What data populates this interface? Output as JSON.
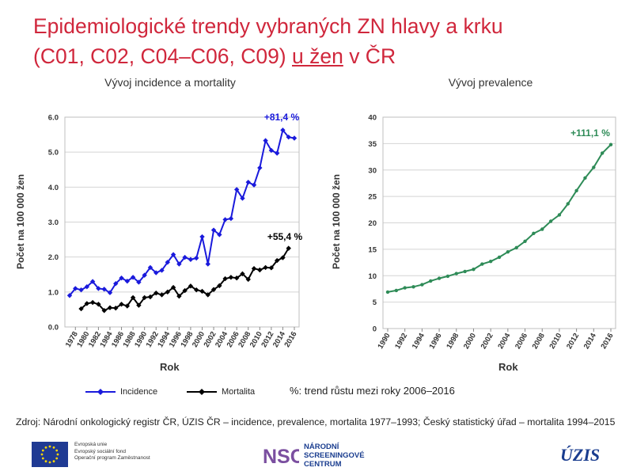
{
  "title": {
    "line1": "Epidemiologické trendy vybraných ZN hlavy a krku",
    "line2_pre": "(C01, C02, C04–C06, C09) ",
    "line2_under": "u žen",
    "line2_post": " v ČR"
  },
  "legend": {
    "incidence": "Incidence",
    "mortality": "Mortalita",
    "note": "%: trend růstu mezi roky 2006–2016"
  },
  "source": "Zdroj: Národní onkologický registr ČR, ÚZIS ČR – incidence, prevalence, mortalita 1977–1993; Český statistický úřad – mortalita 1994–2015",
  "footer": {
    "eu_lines": [
      "Evropská unie",
      "Evropský sociální fond",
      "Operační program Zaměstnanost"
    ],
    "nsc_logo": "NSC",
    "nsc_lines": [
      "NÁRODNÍ",
      "SCREENINGOVÉ",
      "CENTRUM"
    ],
    "uzis_logo": "ÚZIS"
  },
  "colors": {
    "incidence": "#1a1adc",
    "mortality": "#000000",
    "prevalence": "#2e8b57",
    "title": "#d0273c"
  },
  "chart_data": [
    {
      "type": "line",
      "title": "Vývoj incidence a mortality",
      "xlabel": "Rok",
      "ylabel": "Počet na 100 000 žen",
      "ylim": [
        0,
        6
      ],
      "yticks": [
        "0.0",
        "1.0",
        "2.0",
        "3.0",
        "4.0",
        "5.0",
        "6.0"
      ],
      "xticks": [
        "1978",
        "1980",
        "1982",
        "1984",
        "1986",
        "1988",
        "1990",
        "1992",
        "1994",
        "1996",
        "1998",
        "2000",
        "2002",
        "2004",
        "2006",
        "2008",
        "2010",
        "2012",
        "2014",
        "2016"
      ],
      "grid": true,
      "series": [
        {
          "name": "Incidence",
          "color": "#1a1adc",
          "marker": "diamond",
          "x": [
            1977,
            1978,
            1979,
            1980,
            1981,
            1982,
            1983,
            1984,
            1985,
            1986,
            1987,
            1988,
            1989,
            1990,
            1991,
            1992,
            1993,
            1994,
            1995,
            1996,
            1997,
            1998,
            1999,
            2000,
            2001,
            2002,
            2003,
            2004,
            2005,
            2006,
            2007,
            2008,
            2009,
            2010,
            2011,
            2012,
            2013,
            2014,
            2015,
            2016
          ],
          "values": [
            0.9,
            1.1,
            1.06,
            1.15,
            1.3,
            1.1,
            1.08,
            0.98,
            1.24,
            1.4,
            1.31,
            1.42,
            1.28,
            1.48,
            1.7,
            1.55,
            1.62,
            1.85,
            2.07,
            1.8,
            1.99,
            1.93,
            1.97,
            2.58,
            1.8,
            2.77,
            2.64,
            3.07,
            3.1,
            3.93,
            3.68,
            4.14,
            4.06,
            4.55,
            5.33,
            5.05,
            4.97,
            5.63,
            5.43,
            5.4
          ],
          "annotation": "+81,4 %"
        },
        {
          "name": "Mortalita",
          "color": "#000000",
          "marker": "diamond",
          "x": [
            1979,
            1980,
            1981,
            1982,
            1983,
            1984,
            1985,
            1986,
            1987,
            1988,
            1989,
            1990,
            1991,
            1992,
            1993,
            1994,
            1995,
            1996,
            1997,
            1998,
            1999,
            2000,
            2001,
            2002,
            2003,
            2004,
            2005,
            2006,
            2007,
            2008,
            2009,
            2010,
            2011,
            2012,
            2013,
            2014,
            2015
          ],
          "values": [
            0.52,
            0.67,
            0.7,
            0.65,
            0.47,
            0.55,
            0.54,
            0.65,
            0.6,
            0.84,
            0.62,
            0.84,
            0.86,
            0.97,
            0.92,
            1.0,
            1.13,
            0.88,
            1.04,
            1.17,
            1.06,
            1.02,
            0.92,
            1.07,
            1.18,
            1.38,
            1.42,
            1.4,
            1.52,
            1.36,
            1.67,
            1.63,
            1.7,
            1.69,
            1.9,
            1.98,
            2.25
          ],
          "annotation": "+55,4 %"
        }
      ]
    },
    {
      "type": "line",
      "title": "Vývoj prevalence",
      "xlabel": "Rok",
      "ylabel": "Počet na 100 000 žen",
      "ylim": [
        0,
        40
      ],
      "yticks": [
        "0",
        "5",
        "10",
        "15",
        "20",
        "25",
        "30",
        "35",
        "40"
      ],
      "xticks": [
        "1990",
        "1992",
        "1994",
        "1996",
        "1998",
        "2000",
        "2002",
        "2004",
        "2006",
        "2008",
        "2010",
        "2012",
        "2014",
        "2016"
      ],
      "grid": true,
      "series": [
        {
          "name": "Prevalence",
          "color": "#2e8b57",
          "marker": "circle",
          "x": [
            1990,
            1991,
            1992,
            1993,
            1994,
            1995,
            1996,
            1997,
            1998,
            1999,
            2000,
            2001,
            2002,
            2003,
            2004,
            2005,
            2006,
            2007,
            2008,
            2009,
            2010,
            2011,
            2012,
            2013,
            2014,
            2015,
            2016
          ],
          "values": [
            6.9,
            7.2,
            7.7,
            7.9,
            8.3,
            9.0,
            9.5,
            9.9,
            10.4,
            10.8,
            11.2,
            12.2,
            12.7,
            13.5,
            14.5,
            15.3,
            16.5,
            18.0,
            18.8,
            20.3,
            21.5,
            23.6,
            26.1,
            28.5,
            30.5,
            33.2,
            34.8
          ],
          "annotation": "+111,1 %"
        }
      ]
    }
  ]
}
